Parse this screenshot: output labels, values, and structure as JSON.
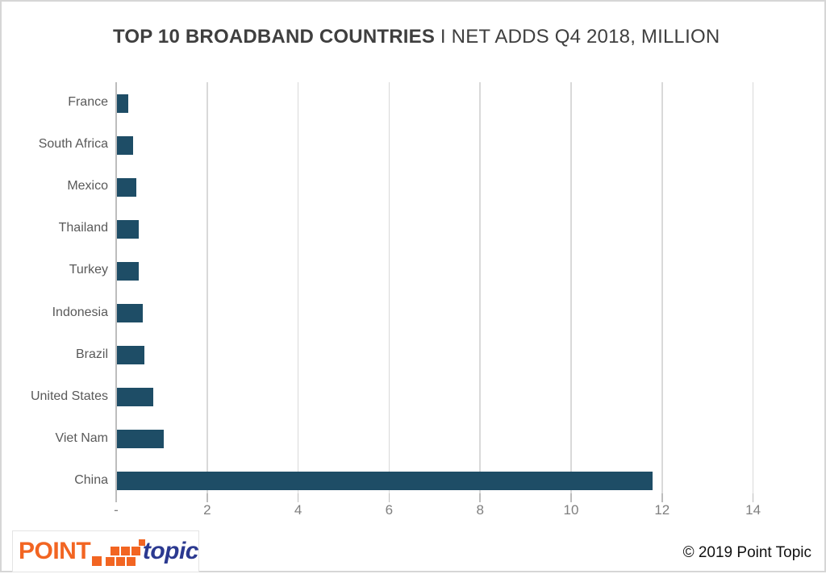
{
  "title": {
    "bold": "TOP 10 BROADBAND COUNTRIES",
    "regular": "I NET ADDS Q4 2018, MILLION"
  },
  "chart_data": {
    "type": "bar",
    "orientation": "horizontal",
    "title": "TOP 10 BROADBAND COUNTRIES I NET ADDS Q4 2018, MILLION",
    "categories": [
      "France",
      "South Africa",
      "Mexico",
      "Thailand",
      "Turkey",
      "Indonesia",
      "Brazil",
      "United States",
      "Viet Nam",
      "China"
    ],
    "values": [
      0.26,
      0.36,
      0.43,
      0.48,
      0.49,
      0.57,
      0.61,
      0.8,
      1.04,
      11.77
    ],
    "xlabel": "",
    "ylabel": "",
    "xlim": [
      0,
      14
    ],
    "xtick_values": [
      0,
      2,
      4,
      6,
      8,
      10,
      12,
      14
    ],
    "xtick_labels": [
      "-",
      "2",
      "4",
      "6",
      "8",
      "10",
      "12",
      "14"
    ],
    "grid": "vertical-on",
    "legend": "none",
    "bar_color": "#1E4D66"
  },
  "colors": {
    "bar": "#1E4D66",
    "gridline": "#D9D9D9",
    "axis": "#BDBDBD",
    "category_label": "#595959",
    "tick_label": "#7F7F7F",
    "title_text": "#3F3F3F",
    "logo_orange": "#F26522",
    "logo_blue": "#2B3990"
  },
  "footer": {
    "copyright": "© 2019 Point Topic",
    "logo": {
      "point": "POINT",
      "topic": "topic"
    }
  }
}
